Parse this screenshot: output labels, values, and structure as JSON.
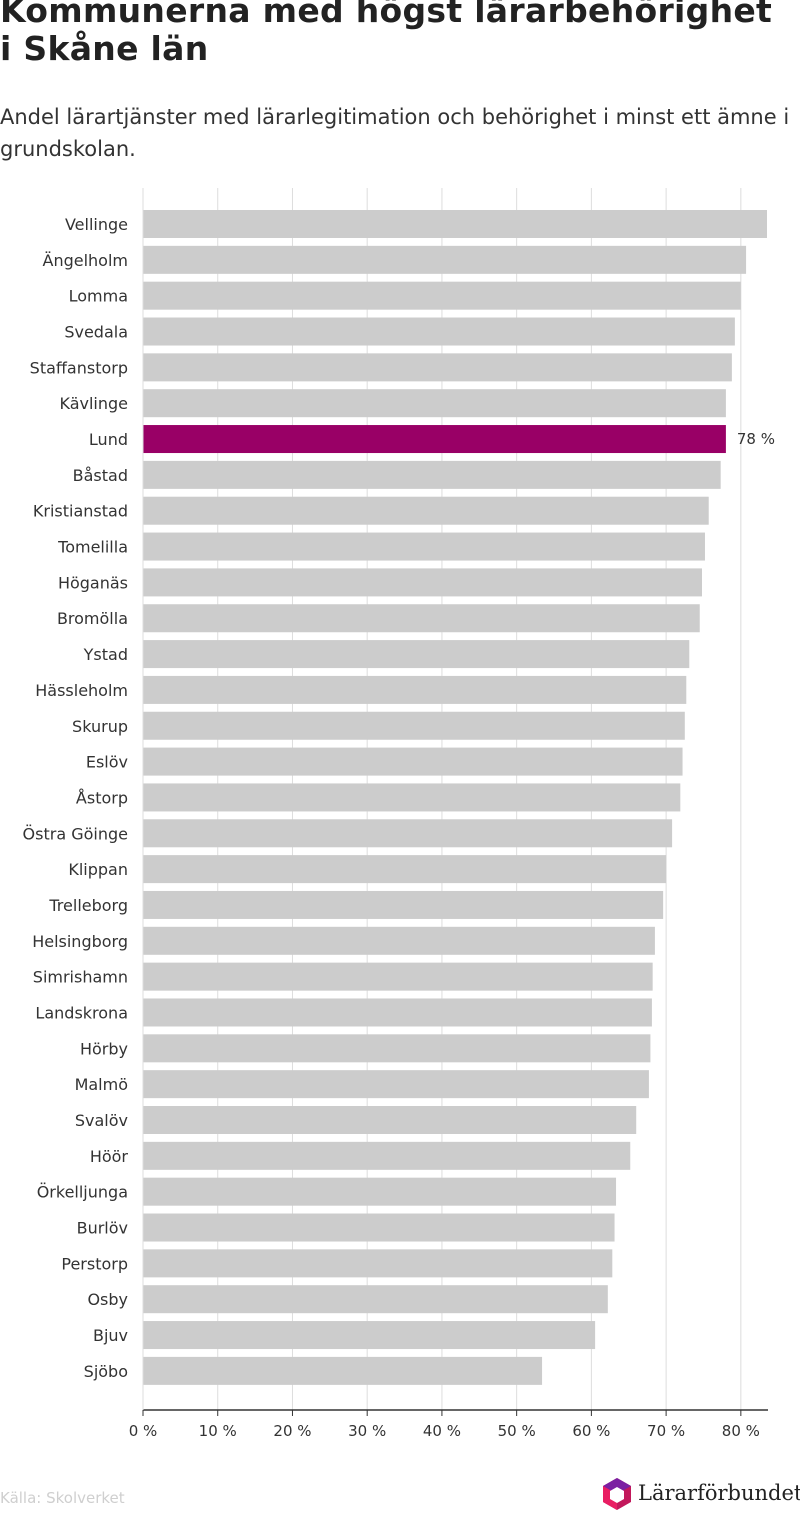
{
  "title": "Kommunerna med högst lärarbehörighet i Skåne län",
  "subtitle": "Andel lärartjänster med lärarlegitimation och behörighet i minst ett ämne i grundskolan.",
  "source": "Källa: Skolverket",
  "logo_text": "Lärarförbundet",
  "colors": {
    "bar": "#cccccc",
    "highlight": "#990066",
    "grid": "#dddddd",
    "axis": "#333333"
  },
  "chart_data": {
    "type": "bar",
    "orientation": "horizontal",
    "categories": [
      "Vellinge",
      "Ängelholm",
      "Lomma",
      "Svedala",
      "Staffanstorp",
      "Kävlinge",
      "Lund",
      "Båstad",
      "Kristianstad",
      "Tomelilla",
      "Höganäs",
      "Bromölla",
      "Ystad",
      "Hässleholm",
      "Skurup",
      "Eslöv",
      "Åstorp",
      "Östra Göinge",
      "Klippan",
      "Trelleborg",
      "Helsingborg",
      "Simrishamn",
      "Landskrona",
      "Hörby",
      "Malmö",
      "Svalöv",
      "Höör",
      "Örkelljunga",
      "Burlöv",
      "Perstorp",
      "Osby",
      "Bjuv",
      "Sjöbo"
    ],
    "values": [
      83.5,
      80.7,
      80.0,
      79.2,
      78.8,
      78.0,
      78.0,
      77.3,
      75.7,
      75.2,
      74.8,
      74.5,
      73.1,
      72.7,
      72.5,
      72.2,
      71.9,
      70.8,
      70.0,
      69.6,
      68.5,
      68.2,
      68.1,
      67.9,
      67.7,
      66.0,
      65.2,
      63.3,
      63.1,
      62.8,
      62.2,
      60.5,
      53.4
    ],
    "highlight": "Lund",
    "data_labels": [
      {
        "category": "Lund",
        "text": "78 %"
      }
    ],
    "xlim": [
      0,
      83.5
    ],
    "ticks": [
      0,
      10,
      20,
      30,
      40,
      50,
      60,
      70,
      80
    ],
    "tick_labels": [
      "0 %",
      "10 %",
      "20 %",
      "30 %",
      "40 %",
      "50 %",
      "60 %",
      "70 %",
      "80 %"
    ],
    "grid": true,
    "xlabel": "",
    "ylabel": ""
  }
}
